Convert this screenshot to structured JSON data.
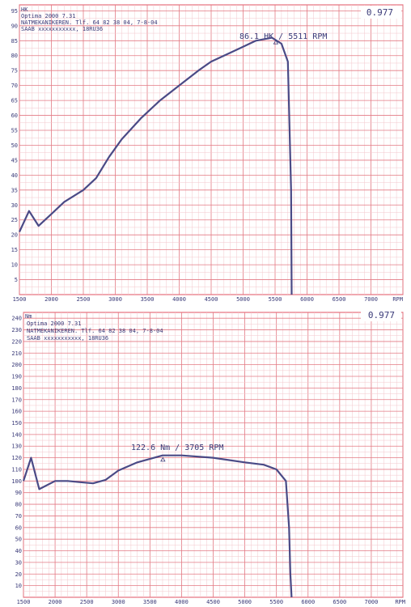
{
  "chart_data": [
    {
      "type": "line",
      "unit": "HK",
      "factor": "0.977",
      "header": [
        "Optima 2000 7.31",
        "NATMEKANIKEREN. Tlf. 64 82 38 04, 7-8-04",
        "SAAB xxxxxxxxxxx, 18RU36"
      ],
      "peak_label": "86.1 HK / 5511 RPM",
      "peak": {
        "x": 5511,
        "y": 86.1
      },
      "xlabel": "RPM",
      "xlim": [
        1500,
        7500
      ],
      "ylim": [
        0,
        97
      ],
      "xticks": [
        1500,
        2000,
        2500,
        3000,
        3500,
        4000,
        4500,
        5000,
        5500,
        6000,
        6500,
        7000
      ],
      "yticks": [
        5,
        10,
        15,
        20,
        25,
        30,
        35,
        40,
        45,
        50,
        55,
        60,
        65,
        70,
        75,
        80,
        85,
        90,
        95
      ],
      "grid": true,
      "series": [
        {
          "x": [
            1500,
            1650,
            1800,
            2000,
            2200,
            2500,
            2700,
            2900,
            3100,
            3400,
            3700,
            4000,
            4300,
            4500,
            4800,
            5000,
            5200,
            5450,
            5600,
            5700,
            5750,
            5760
          ],
          "y": [
            21,
            28,
            23,
            27,
            31,
            35,
            39,
            46,
            52,
            59,
            65,
            70,
            75,
            78,
            81,
            83,
            85,
            86,
            84,
            78,
            35,
            0
          ]
        }
      ]
    },
    {
      "type": "line",
      "unit": "Nm",
      "factor": "0.977",
      "header": [
        "Optima 2000 7.31",
        "NATMEKANIKEREN. Tlf. 64 82 38 04, 7-8-04",
        "SAAB xxxxxxxxxxx, 18RU36"
      ],
      "peak_label": "122.6 Nm / 3705 RPM",
      "peak": {
        "x": 3705,
        "y": 122.6
      },
      "xlabel": "RPM",
      "xlim": [
        1500,
        7500
      ],
      "ylim": [
        0,
        245
      ],
      "xticks": [
        1500,
        2000,
        2500,
        3000,
        3500,
        4000,
        4500,
        5000,
        5500,
        6000,
        6500,
        7000
      ],
      "yticks": [
        10,
        20,
        30,
        40,
        50,
        60,
        70,
        80,
        90,
        100,
        110,
        120,
        130,
        140,
        150,
        160,
        170,
        180,
        190,
        200,
        210,
        220,
        230,
        240
      ],
      "grid": true,
      "series": [
        {
          "x": [
            1500,
            1620,
            1750,
            2000,
            2200,
            2400,
            2600,
            2800,
            3000,
            3300,
            3700,
            4000,
            4500,
            5000,
            5300,
            5500,
            5650,
            5700,
            5720,
            5740
          ],
          "y": [
            100,
            120,
            93,
            100,
            100,
            99,
            98,
            101,
            109,
            116,
            122,
            122,
            120,
            116,
            114,
            110,
            100,
            60,
            20,
            0
          ]
        }
      ]
    }
  ]
}
